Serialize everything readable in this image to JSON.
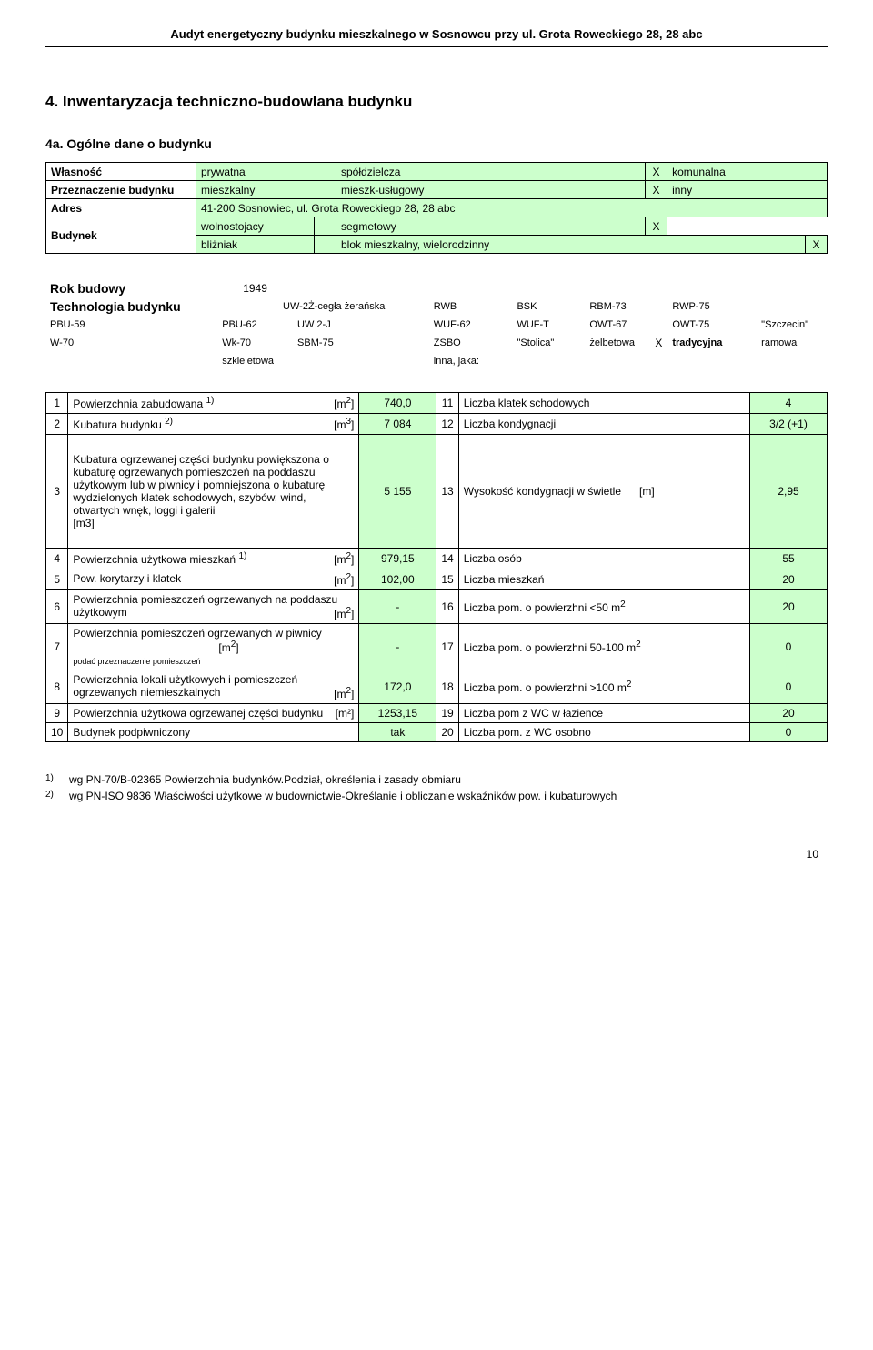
{
  "colors": {
    "highlight_bg": "#ccffcc",
    "text": "#000000",
    "border": "#000000",
    "page_bg": "#ffffff"
  },
  "doc_header": "Audyt energetyczny budynku mieszkalnego w Sosnowcu przy ul. Grota Roweckiego 28, 28 abc",
  "section_title": "4. Inwentaryzacja techniczno-budowlana budynku",
  "subsection_title": "4a. Ogólne dane o budynku",
  "t1": {
    "own_label": "Własność",
    "own_v1": "prywatna",
    "own_v2": "spółdzielcza",
    "own_x2": "X",
    "own_v3": "komunalna",
    "purpose_label": "Przeznaczenie budynku",
    "purpose_v1": "mieszkalny",
    "purpose_v2": "mieszk-usługowy",
    "purpose_x2": "X",
    "purpose_v3": "inny",
    "addr_label": "Adres",
    "addr_val": "41-200 Sosnowiec, ul. Grota Roweckiego 28, 28 abc",
    "bld_label": "Budynek",
    "bld_r1v1": "wolnostojacy",
    "bld_r1v2": "segmetowy",
    "bld_r1x2": "X",
    "bld_r2v1": "bliżniak",
    "bld_r2v2": "blok mieszkalny, wielorodzinny",
    "bld_r2x2": "X"
  },
  "t2": {
    "year_label": "Rok budowy",
    "year_val": "1949",
    "tech_label": "Technologia budynku",
    "r1": {
      "c1": "",
      "c2": "",
      "c3": "UW-2Ż-cegła żerańska",
      "c4": "",
      "c5": "RWB",
      "c6": "",
      "c7": "BSK",
      "c8": "",
      "c9": "RBM-73",
      "c10": "",
      "c11": "RWP-75"
    },
    "r2": {
      "a1": "PBU-59",
      "a2": "PBU-62",
      "a3": "UW 2-J",
      "a4": "WUF-62",
      "a5": "WUF-T",
      "a6": "OWT-67",
      "a7": "OWT-75",
      "a8": "\"Szczecin\""
    },
    "r3": {
      "a1": "W-70",
      "a2": "Wk-70",
      "a3": "SBM-75",
      "a4": "ZSBO",
      "a5": "\"Stolica\"",
      "a6": "żelbetowa",
      "x": "X",
      "a7": "tradycyjna",
      "a8": "ramowa"
    },
    "r4": {
      "a1": "szkieletowa",
      "a2": "inna, jaka:"
    }
  },
  "t3": {
    "rows": [
      {
        "n": "1",
        "d": "Powierzchnia zabudowana <sup>1)</sup>",
        "u": "[m<sup>2</sup>]",
        "v": "740,0",
        "n2": "11",
        "d2": "Liczba klatek schodowych",
        "v2": "4"
      },
      {
        "n": "2",
        "d": "Kubatura budynku <sup>2)</sup>",
        "u": "[m<sup>3</sup>]",
        "v": "7 084",
        "n2": "12",
        "d2": "Liczba kondygnacji",
        "v2": "3/2 (+1)"
      },
      {
        "n": "3",
        "d": "Kubatura ogrzewanej części budynku powiększona o kubaturę ogrzewanych pomieszczeń na poddaszu użytkowym lub w piwnicy i pomniejszona o kubaturę wydzielonych klatek schodowych, szybów, wind, otwartych wnęk, loggi i galerii<br>[m3]",
        "u": "",
        "v": "5 155",
        "n2": "13",
        "d2": "Wysokość kondygnacji w świetle &nbsp;&nbsp;&nbsp;&nbsp; [m]",
        "v2": "2,95",
        "tall": true
      },
      {
        "n": "4",
        "d": "Powierzchnia użytkowa mieszkań <sup>1)</sup>",
        "u": "[m<sup>2</sup>]",
        "v": "979,15",
        "n2": "14",
        "d2": "Liczba osób",
        "v2": "55"
      },
      {
        "n": "5",
        "d": "Pow. korytarzy i klatek",
        "u": "[m<sup>2</sup>]",
        "v": "102,00",
        "n2": "15",
        "d2": "Liczba mieszkań",
        "v2": "20"
      },
      {
        "n": "6",
        "d": "Powierzchnia pomieszczeń ogrzewanych na poddaszu użytkowym",
        "u": "[m<sup>2</sup>]",
        "v": "-",
        "n2": "16",
        "d2": "Liczba pom. o powierzhni &lt;50 m<sup>2</sup>",
        "v2": "20"
      },
      {
        "n": "7",
        "d": "Powierzchnia pomieszczeń ogrzewanych w piwnicy &nbsp;&nbsp;&nbsp;&nbsp;&nbsp;&nbsp;&nbsp;&nbsp;&nbsp;&nbsp;&nbsp;&nbsp;&nbsp;&nbsp;&nbsp;&nbsp;&nbsp;&nbsp;&nbsp;&nbsp;&nbsp;&nbsp;&nbsp;&nbsp;&nbsp;&nbsp;&nbsp;&nbsp;&nbsp;&nbsp;&nbsp;&nbsp;&nbsp;&nbsp;&nbsp;&nbsp;&nbsp;&nbsp;&nbsp;&nbsp;&nbsp;&nbsp;&nbsp;&nbsp;&nbsp;&nbsp;&nbsp; [m<sup>2</sup>]<br><span style='font-size:9px'>podać przeznaczenie pomieszczeń</span>",
        "u": "",
        "v": "-",
        "n2": "17",
        "d2": "Liczba pom. o powierzhni 50-100 m<sup>2</sup>",
        "v2": "0"
      },
      {
        "n": "8",
        "d": "Powierzchnia  lokali użytkowych i pomieszczeń ogrzewanych niemieszkalnych",
        "u": "[m<sup>2</sup>]",
        "v": "172,0",
        "n2": "18",
        "d2": "Liczba pom. o powierzhni &gt;100 m<sup>2</sup>",
        "v2": "0"
      },
      {
        "n": "9",
        "d": "Powierzchnia użytkowa ogrzewanej części budynku",
        "u": "[m²]",
        "v": "1253,15",
        "n2": "19",
        "d2": "Liczba pom z WC w łazience",
        "v2": "20"
      },
      {
        "n": "10",
        "d": "Budynek podpiwniczony",
        "u": "",
        "v": "tak",
        "n2": "20",
        "d2": "Liczba pom. z WC osobno",
        "v2": "0"
      }
    ]
  },
  "footnotes": {
    "f1_mark": "1)",
    "f1": "wg PN-70/B-02365 Powierzchnia budynków.Podział, określenia i zasady obmiaru",
    "f2_mark": "2)",
    "f2": "wg PN-ISO 9836 Właściwości użytkowe w budownictwie-Określanie i obliczanie wskaźników pow. i kubaturowych"
  },
  "page_number": "10"
}
